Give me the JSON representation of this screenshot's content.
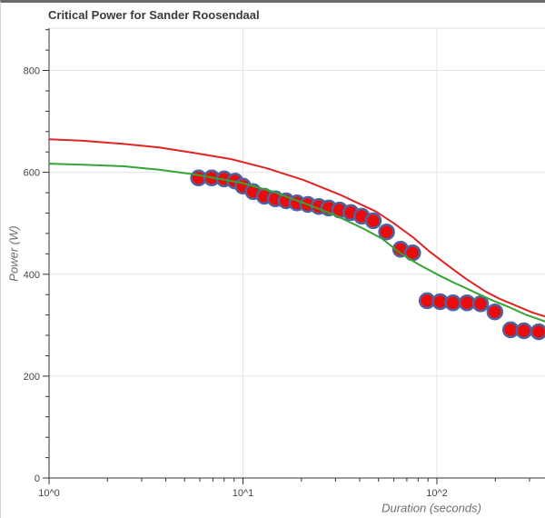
{
  "chart_data": {
    "type": "scatter",
    "title": "Critical Power for Sander Roosendaal",
    "xlabel": "Duration (seconds)",
    "ylabel": "Power (W)",
    "x_scale": "log10",
    "x_range": [
      1,
      365
    ],
    "x_tick_labels": [
      {
        "label": "10^0",
        "value": 1
      },
      {
        "label": "10^1",
        "value": 10
      },
      {
        "label": "10^2",
        "value": 100
      }
    ],
    "ylim": [
      0,
      883
    ],
    "y_ticks": [
      0,
      200,
      400,
      600,
      800
    ],
    "y_minor_tick_step": 40,
    "grid": {
      "h_values": [
        200,
        400,
        600,
        800
      ],
      "v_values": [
        10,
        100
      ],
      "color": "#e4e4e4"
    },
    "axis_color": "#333333",
    "tick_label_color": "#444444",
    "axis_title_color": "#6d6d6d",
    "title_color": "#3b3b3b",
    "series": [
      {
        "name": "power-duration-points",
        "type": "scatter",
        "marker_fill": "#ea0b0b",
        "marker_stroke": "#4e64a0",
        "points": [
          [
            5.9,
            589
          ],
          [
            6.9,
            589
          ],
          [
            8,
            587
          ],
          [
            9.1,
            583
          ],
          [
            10,
            573
          ],
          [
            11.3,
            562
          ],
          [
            12.9,
            553
          ],
          [
            14.7,
            548
          ],
          [
            16.7,
            544
          ],
          [
            19,
            540
          ],
          [
            21.6,
            537
          ],
          [
            24.6,
            533
          ],
          [
            27.7,
            530
          ],
          [
            31.5,
            526
          ],
          [
            36,
            521
          ],
          [
            41,
            514
          ],
          [
            47,
            505
          ],
          [
            55,
            483
          ],
          [
            65,
            449
          ],
          [
            75,
            442
          ],
          [
            89,
            348
          ],
          [
            104,
            346
          ],
          [
            121,
            344
          ],
          [
            143,
            344
          ],
          [
            168,
            342
          ],
          [
            199,
            326
          ],
          [
            240,
            291
          ],
          [
            281,
            289
          ],
          [
            335,
            287
          ]
        ]
      },
      {
        "name": "cp-model-curve-green",
        "type": "line",
        "color": "#36a336",
        "points": [
          [
            1,
            617
          ],
          [
            1.5,
            615
          ],
          [
            2.4,
            612
          ],
          [
            3.7,
            605
          ],
          [
            5.6,
            596
          ],
          [
            9.7,
            580
          ],
          [
            14.3,
            562
          ],
          [
            20.5,
            540
          ],
          [
            29.5,
            517
          ],
          [
            42,
            489
          ],
          [
            52,
            470
          ],
          [
            65,
            441
          ],
          [
            80,
            420
          ],
          [
            100,
            400
          ],
          [
            120,
            385
          ],
          [
            154,
            366
          ],
          [
            190,
            350
          ],
          [
            237,
            335
          ],
          [
            290,
            320
          ],
          [
            363,
            307
          ]
        ]
      },
      {
        "name": "cp-model-curve-red",
        "type": "line",
        "color": "#e02424",
        "points": [
          [
            1,
            665
          ],
          [
            1.5,
            662
          ],
          [
            2.4,
            656
          ],
          [
            3.7,
            649
          ],
          [
            5.6,
            638
          ],
          [
            8.7,
            626
          ],
          [
            13.3,
            608
          ],
          [
            20.5,
            585
          ],
          [
            31.7,
            556
          ],
          [
            48.6,
            523
          ],
          [
            60,
            500
          ],
          [
            75,
            473
          ],
          [
            90,
            447
          ],
          [
            115,
            416
          ],
          [
            140,
            392
          ],
          [
            178,
            366
          ],
          [
            210,
            352
          ],
          [
            273,
            334
          ],
          [
            310,
            325
          ],
          [
            363,
            317
          ]
        ]
      }
    ]
  }
}
